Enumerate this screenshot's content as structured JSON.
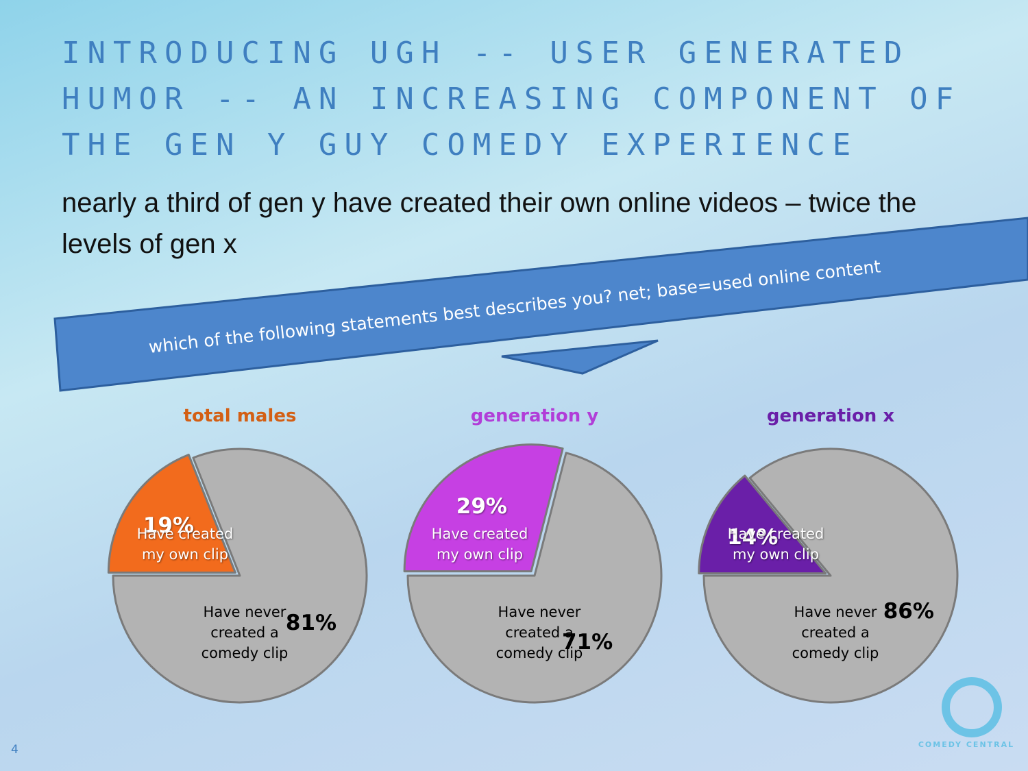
{
  "title": "INTRODUCING UGH -- USER GENERATED HUMOR -- AN INCREASING COMPONENT OF THE GEN Y GUY COMEDY EXPERIENCE",
  "subtitle": "nearly a third of gen y have created their own online videos – twice the levels of gen x",
  "banner": "which of the following statements best describes you? net; base=used online content",
  "logo": "COMEDY CENTRAL",
  "page_number": "4",
  "chart_data": [
    {
      "type": "pie",
      "title": "total males",
      "title_color": "#d35f14",
      "categories": [
        "Have created my own clip",
        "Have never created a comedy clip"
      ],
      "values": [
        19,
        81
      ],
      "value_labels": [
        "19%",
        "81%"
      ],
      "colors": [
        "#f26b1d",
        "#b3b3b3"
      ]
    },
    {
      "type": "pie",
      "title": "generation y",
      "title_color": "#b13ed8",
      "categories": [
        "Have created my own clip",
        "Have never created a comedy clip"
      ],
      "values": [
        29,
        71
      ],
      "value_labels": [
        "29%",
        "71%"
      ],
      "colors": [
        "#c640e3",
        "#b3b3b3"
      ]
    },
    {
      "type": "pie",
      "title": "generation x",
      "title_color": "#6a1fa8",
      "categories": [
        "Have created my own clip",
        "Have never created a comedy clip"
      ],
      "values": [
        14,
        86
      ],
      "value_labels": [
        "14%",
        "86%"
      ],
      "colors": [
        "#6a1fa8",
        "#b3b3b3"
      ]
    }
  ]
}
